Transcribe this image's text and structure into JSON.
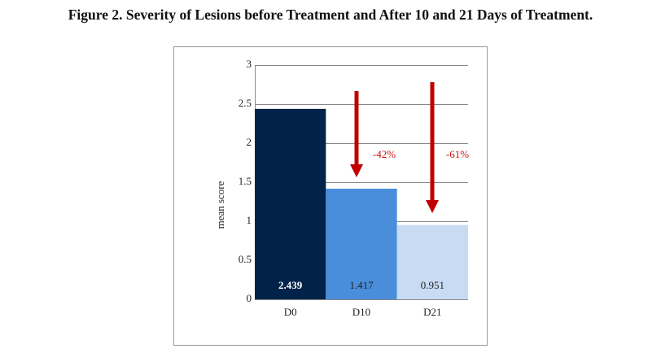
{
  "chart_data": {
    "type": "bar",
    "title": "Figure 2. Severity of Lesions before Treatment and After 10 and 21 Days of Treatment.",
    "y_label": "mean score",
    "categories": [
      "D0",
      "D10",
      "D21"
    ],
    "values": [
      2.439,
      1.417,
      0.951
    ],
    "colors": [
      "#012249",
      "#4a8edb",
      "#c8dbf3"
    ],
    "value_label_colors": [
      "#ffffff",
      "#222222",
      "#222222"
    ],
    "ylim": [
      0,
      3
    ],
    "yticks": [
      0,
      0.5,
      1,
      1.5,
      2,
      2.5,
      3
    ],
    "grid": true,
    "annotations": [
      {
        "text": "-42%"
      },
      {
        "text": "-61%"
      }
    ]
  }
}
